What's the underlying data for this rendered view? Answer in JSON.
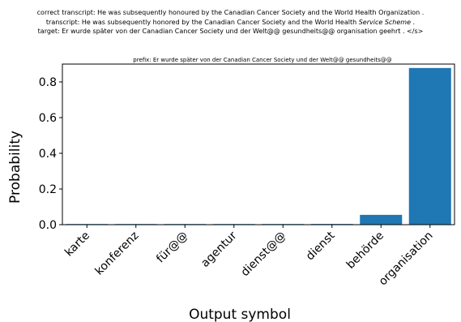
{
  "header": {
    "line1": "correct transcript: He was subsequently honoured by the Canadian Cancer Society and the World Health Organization .",
    "line2_prefix": "transcript: He was subsequently honored by the Canadian Cancer Society and the World Health ",
    "line2_italic": "Service Scheme",
    "line2_suffix": " .",
    "line3": "target: Er wurde später von der Canadian Cancer Society und der Welt@@ gesundheits@@ organisation geehrt . </s>"
  },
  "chart_data": {
    "type": "bar",
    "title": "prefix: Er wurde später von der Canadian Cancer Society und der Welt@@ gesundheits@@",
    "xlabel": "Output symbol",
    "ylabel": "Probability",
    "categories": [
      "karte",
      "konferenz",
      "für@@",
      "agentur",
      "dienst@@",
      "dienst",
      "behörde",
      "organisation"
    ],
    "values": [
      0.001,
      0.001,
      0.002,
      0.003,
      0.003,
      0.004,
      0.055,
      0.878
    ],
    "ylim": [
      0,
      0.9
    ],
    "yticks": [
      "0.0",
      "0.2",
      "0.4",
      "0.6",
      "0.8"
    ],
    "bar_color": "#1f77b4",
    "grid": false
  }
}
